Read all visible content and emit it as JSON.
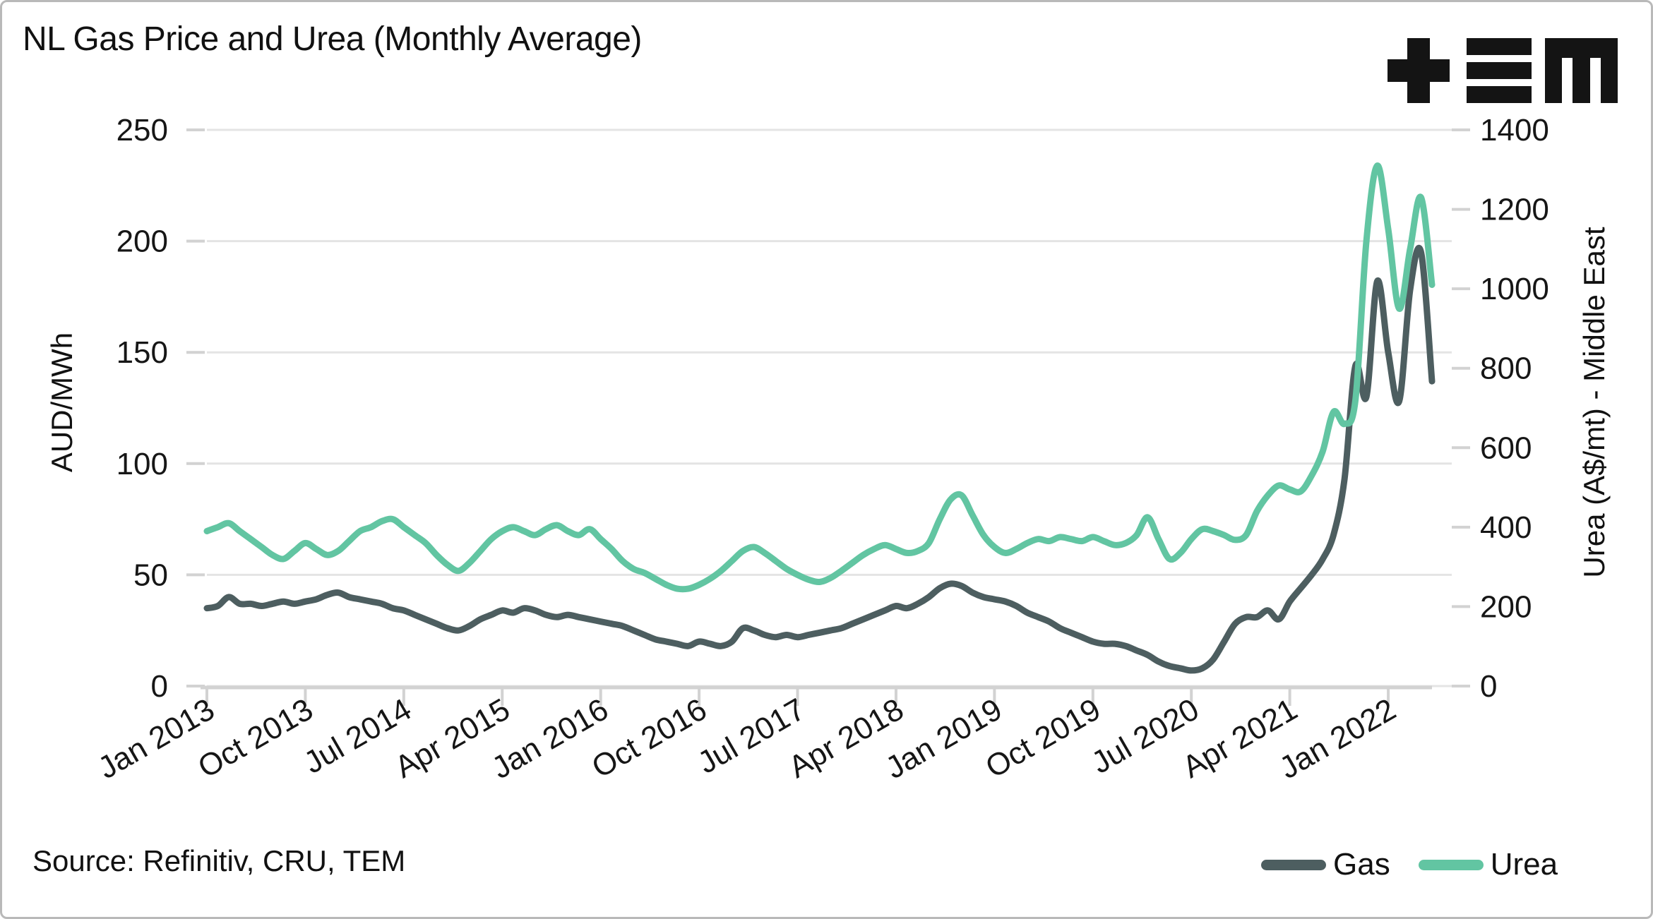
{
  "title": "NL Gas Price and Urea (Monthly Average)",
  "logo": {
    "name": "TEM logo",
    "color": "#141414"
  },
  "source": "Source: Refinitiv, CRU, TEM",
  "legend": {
    "items": [
      {
        "label": "Gas",
        "color": "#4d5e60"
      },
      {
        "label": "Urea",
        "color": "#62c5a2"
      }
    ],
    "position": "bottom-right"
  },
  "chart_data": {
    "type": "line",
    "title": "NL Gas Price and Urea (Monthly Average)",
    "frequency": "monthly",
    "start": "Jan 2013",
    "end": "May 2022",
    "grid": "horizontal",
    "legend_position": "bottom-right",
    "x_tick_labels": [
      "Jan 2013",
      "Oct 2013",
      "Jul 2014",
      "Apr 2015",
      "Jan 2016",
      "Oct 2016",
      "Jul 2017",
      "Apr 2018",
      "Jan 2019",
      "Oct 2019",
      "Jul 2020",
      "Apr 2021",
      "Jan 2022"
    ],
    "x_tick_month_step": 9,
    "y_left": {
      "label": "AUD/MWh",
      "range": [
        0,
        250
      ],
      "ticks": [
        0,
        50,
        100,
        150,
        200,
        250
      ]
    },
    "y_right": {
      "label": "Urea (A$/mt) - Middle East",
      "range": [
        0,
        1400
      ],
      "ticks": [
        0,
        200,
        400,
        600,
        800,
        1000,
        1200,
        1400
      ]
    },
    "series": [
      {
        "name": "Gas",
        "axis": "left",
        "color": "#4d5e60",
        "units": "AUD/MWh",
        "values": [
          35,
          36,
          40,
          37,
          37,
          36,
          37,
          38,
          37,
          38,
          39,
          41,
          42,
          40,
          39,
          38,
          37,
          35,
          34,
          32,
          30,
          28,
          26,
          25,
          27,
          30,
          32,
          34,
          33,
          35,
          34,
          32,
          31,
          32,
          31,
          30,
          29,
          28,
          27,
          25,
          23,
          21,
          20,
          19,
          18,
          20,
          19,
          18,
          20,
          26,
          25,
          23,
          22,
          23,
          22,
          23,
          24,
          25,
          26,
          28,
          30,
          32,
          34,
          36,
          35,
          37,
          40,
          44,
          46,
          45,
          42,
          40,
          39,
          38,
          36,
          33,
          31,
          29,
          26,
          24,
          22,
          20,
          19,
          19,
          18,
          16,
          14,
          11,
          9,
          8,
          7,
          8,
          12,
          20,
          28,
          31,
          31,
          34,
          30,
          38,
          44,
          50,
          57,
          68,
          93,
          144,
          130,
          182,
          150,
          128,
          178,
          195,
          137
        ]
      },
      {
        "name": "Urea",
        "axis": "right",
        "color": "#62c5a2",
        "units": "A$/mt",
        "values": [
          390,
          400,
          410,
          390,
          370,
          350,
          330,
          320,
          340,
          360,
          345,
          330,
          340,
          365,
          390,
          400,
          415,
          420,
          400,
          380,
          360,
          330,
          305,
          290,
          310,
          340,
          370,
          390,
          400,
          390,
          380,
          395,
          405,
          390,
          380,
          395,
          370,
          345,
          315,
          295,
          285,
          270,
          255,
          245,
          245,
          255,
          270,
          290,
          315,
          340,
          350,
          335,
          315,
          295,
          280,
          268,
          262,
          272,
          290,
          310,
          330,
          345,
          355,
          345,
          335,
          340,
          360,
          420,
          470,
          480,
          430,
          380,
          350,
          335,
          345,
          360,
          370,
          365,
          375,
          370,
          365,
          375,
          365,
          355,
          360,
          380,
          425,
          370,
          320,
          335,
          370,
          395,
          390,
          380,
          368,
          380,
          440,
          480,
          505,
          495,
          490,
          530,
          590,
          690,
          660,
          720,
          1120,
          1310,
          1150,
          950,
          1100,
          1230,
          1010
        ]
      }
    ],
    "style": {
      "gridline_color": "#e4e4e4",
      "axis_color": "#d2d2d2",
      "line_width": 9
    }
  }
}
